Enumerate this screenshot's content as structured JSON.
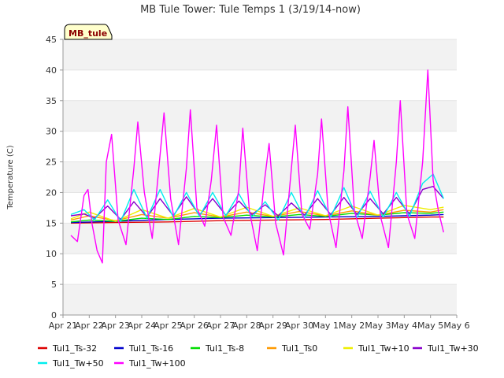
{
  "chart_data": {
    "type": "line",
    "title": "MB Tule Tower: Tule Temps 1 (3/19/14-now)",
    "xlabel": "",
    "ylabel": "Temperature (C)",
    "site_label": "MB_tule",
    "ylim": [
      0,
      45
    ],
    "yticks": [
      0,
      5,
      10,
      15,
      20,
      25,
      30,
      35,
      40,
      45
    ],
    "xlim": [
      0,
      15
    ],
    "xtick_labels": [
      "Apr 21",
      "Apr 22",
      "Apr 23",
      "Apr 24",
      "Apr 25",
      "Apr 26",
      "Apr 27",
      "Apr 28",
      "Apr 29",
      "Apr 30",
      "May 1",
      "May 2",
      "May 3",
      "May 4",
      "May 5",
      "May 6"
    ],
    "x_axis_note": "Days since Apr 21 00:00",
    "grid": "horizontal bands",
    "legend_position": "bottom",
    "series": [
      {
        "name": "Tul1_Ts-32",
        "color": "#dd0000",
        "x": [
          0.3,
          2,
          4,
          6,
          8,
          10,
          12,
          14,
          14.5
        ],
        "values": [
          15.0,
          15.1,
          15.2,
          15.4,
          15.5,
          15.6,
          15.8,
          16.0,
          16.0
        ]
      },
      {
        "name": "Tul1_Ts-16",
        "color": "#0000cc",
        "x": [
          0.3,
          2,
          4,
          6,
          8,
          10,
          12,
          14,
          14.5
        ],
        "values": [
          15.1,
          15.3,
          15.6,
          15.8,
          15.9,
          16.0,
          16.1,
          16.3,
          16.4
        ]
      },
      {
        "name": "Tul1_Ts-8",
        "color": "#00dd00",
        "x": [
          0.3,
          1,
          2,
          3,
          4,
          5,
          6,
          7,
          8,
          9,
          10,
          11,
          12,
          13,
          14,
          14.5
        ],
        "values": [
          15.2,
          15.5,
          15.3,
          15.8,
          15.6,
          16.1,
          15.9,
          16.3,
          16.0,
          16.4,
          16.1,
          16.6,
          16.3,
          16.7,
          16.6,
          16.8
        ]
      },
      {
        "name": "Tul1_Ts0",
        "color": "#ff9900",
        "x": [
          0.3,
          1,
          2,
          3,
          4,
          5,
          6,
          7,
          8,
          9,
          10,
          11,
          12,
          13,
          14,
          14.5
        ],
        "values": [
          15.5,
          16.2,
          15.4,
          16.4,
          15.8,
          16.7,
          16.0,
          16.8,
          16.1,
          16.9,
          16.2,
          17.0,
          16.3,
          17.1,
          16.8,
          17.2
        ]
      },
      {
        "name": "Tul1_Tw+10",
        "color": "#eeee00",
        "x": [
          0.3,
          1,
          2,
          3,
          4,
          5,
          6,
          7,
          8,
          9,
          10,
          11,
          12,
          13,
          14,
          14.5
        ],
        "values": [
          15.7,
          16.8,
          15.3,
          17.2,
          15.8,
          17.4,
          16.0,
          17.6,
          16.1,
          17.5,
          16.2,
          17.8,
          16.3,
          17.9,
          17.2,
          17.6
        ]
      },
      {
        "name": "Tul1_Tw+30",
        "color": "#8800cc",
        "x": [
          0.3,
          0.8,
          1.2,
          1.7,
          2.2,
          2.7,
          3.2,
          3.7,
          4.2,
          4.7,
          5.2,
          5.7,
          6.2,
          6.7,
          7.2,
          7.7,
          8.2,
          8.7,
          9.2,
          9.7,
          10.2,
          10.7,
          11.2,
          11.7,
          12.2,
          12.7,
          13.2,
          13.7,
          14.1,
          14.5
        ],
        "values": [
          16.2,
          16.5,
          15.8,
          17.8,
          15.6,
          18.5,
          16.0,
          19.0,
          16.2,
          19.3,
          16.3,
          19.0,
          16.3,
          18.6,
          16.4,
          18.0,
          16.2,
          18.3,
          16.3,
          19.0,
          16.4,
          19.2,
          16.4,
          19.0,
          16.5,
          19.2,
          16.5,
          20.5,
          21.0,
          19.0
        ]
      },
      {
        "name": "Tul1_Tw+50",
        "color": "#00eeee",
        "x": [
          0.3,
          0.8,
          1.2,
          1.7,
          2.2,
          2.7,
          3.2,
          3.7,
          4.2,
          4.7,
          5.2,
          5.7,
          6.2,
          6.7,
          7.2,
          7.7,
          8.2,
          8.7,
          9.2,
          9.7,
          10.2,
          10.7,
          11.2,
          11.7,
          12.2,
          12.7,
          13.2,
          13.7,
          14.1,
          14.5
        ],
        "values": [
          16.4,
          17.2,
          15.5,
          18.8,
          15.3,
          20.5,
          15.8,
          20.5,
          16.0,
          20.0,
          16.1,
          20.0,
          16.2,
          19.8,
          16.0,
          18.5,
          15.5,
          20.0,
          15.8,
          20.3,
          16.0,
          20.8,
          15.9,
          20.2,
          16.0,
          20.0,
          16.1,
          21.5,
          23.0,
          19.0
        ]
      },
      {
        "name": "Tul1_Tw+100",
        "color": "#ff00ff",
        "x": [
          0.3,
          0.55,
          0.8,
          0.95,
          1.1,
          1.3,
          1.5,
          1.65,
          1.85,
          2.1,
          2.4,
          2.7,
          2.85,
          3.1,
          3.4,
          3.65,
          3.85,
          4.1,
          4.4,
          4.7,
          4.85,
          5.1,
          5.4,
          5.65,
          5.85,
          6.1,
          6.4,
          6.7,
          6.85,
          7.1,
          7.4,
          7.65,
          7.85,
          8.1,
          8.4,
          8.65,
          8.85,
          9.1,
          9.4,
          9.7,
          9.85,
          10.1,
          10.4,
          10.7,
          10.85,
          11.1,
          11.4,
          11.7,
          11.85,
          12.1,
          12.4,
          12.7,
          12.85,
          13.1,
          13.4,
          13.7,
          13.9,
          14.1,
          14.3,
          14.5
        ],
        "values": [
          13.0,
          12.0,
          19.5,
          20.5,
          15.0,
          10.5,
          8.5,
          25.0,
          29.5,
          15.5,
          11.5,
          24.0,
          31.5,
          20.0,
          12.5,
          24.0,
          33.0,
          19.0,
          11.5,
          24.0,
          33.5,
          17.5,
          14.5,
          22.0,
          31.0,
          16.0,
          13.0,
          20.5,
          30.5,
          17.0,
          10.5,
          21.0,
          28.0,
          15.0,
          9.8,
          21.5,
          31.0,
          16.5,
          14.0,
          23.0,
          32.0,
          17.0,
          11.0,
          23.5,
          34.0,
          17.0,
          12.5,
          22.5,
          28.5,
          16.0,
          11.0,
          25.0,
          35.0,
          16.5,
          12.5,
          25.0,
          40.0,
          22.0,
          17.0,
          13.5
        ]
      }
    ]
  }
}
